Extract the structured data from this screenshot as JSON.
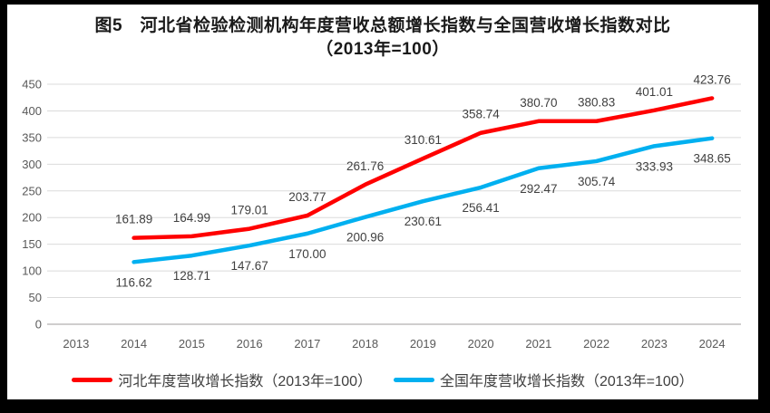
{
  "chart_data": {
    "type": "line",
    "title_lines": [
      "图5　河北省检验检测机构年度营收总额增长指数与全国营收增长指数对比",
      "（2013年=100）"
    ],
    "categories": [
      "2013",
      "2014",
      "2015",
      "2016",
      "2017",
      "2018",
      "2019",
      "2020",
      "2021",
      "2022",
      "2023",
      "2024"
    ],
    "yticks": [
      "0",
      "50",
      "100",
      "150",
      "200",
      "250",
      "300",
      "350",
      "400",
      "450"
    ],
    "ylim": [
      0,
      450
    ],
    "grid": true,
    "legend_position": "bottom",
    "series": [
      {
        "name": "河北年度营收增长指数（2013年=100）",
        "color": "#FF0000",
        "label_position": "above",
        "values": [
          null,
          161.89,
          164.99,
          179.01,
          203.77,
          261.76,
          310.61,
          358.74,
          380.7,
          380.83,
          401.01,
          423.76
        ],
        "labels": [
          null,
          "161.89",
          "164.99",
          "179.01",
          "203.77",
          "261.76",
          "310.61",
          "358.74",
          "380.70",
          "380.83",
          "401.01",
          "423.76"
        ]
      },
      {
        "name": "全国年度营收增长指数（2013年=100）",
        "color": "#00B0F0",
        "label_position": "below",
        "values": [
          null,
          116.62,
          128.71,
          147.67,
          170.0,
          200.96,
          230.61,
          256.41,
          292.47,
          305.74,
          333.93,
          348.65
        ],
        "labels": [
          null,
          "116.62",
          "128.71",
          "147.67",
          "170.00",
          "200.96",
          "230.61",
          "256.41",
          "292.47",
          "305.74",
          "333.93",
          "348.65"
        ]
      }
    ],
    "style": {
      "gridline_color": "#DBDBDB",
      "axis_line_color": "#D0CECE",
      "tick_label_color": "#595959",
      "data_label_color": "#404040",
      "title_color": "#1A1A1A",
      "legend_text_color": "#404040",
      "frame_border_color": "#000000"
    }
  }
}
